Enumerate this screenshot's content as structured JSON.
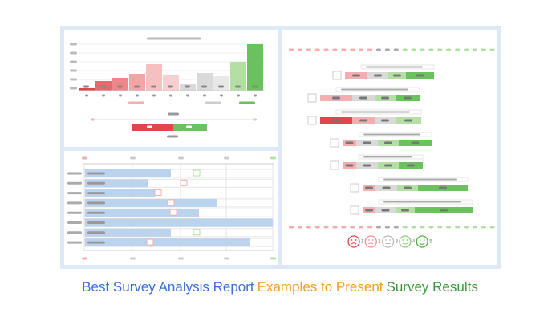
{
  "caption": {
    "part1": "Best Survey Analysis Report",
    "part2": "Examples to Present",
    "part3": "Survey Results"
  },
  "scale_labels": [
    "1",
    "2",
    "3",
    "4",
    "5"
  ]
}
